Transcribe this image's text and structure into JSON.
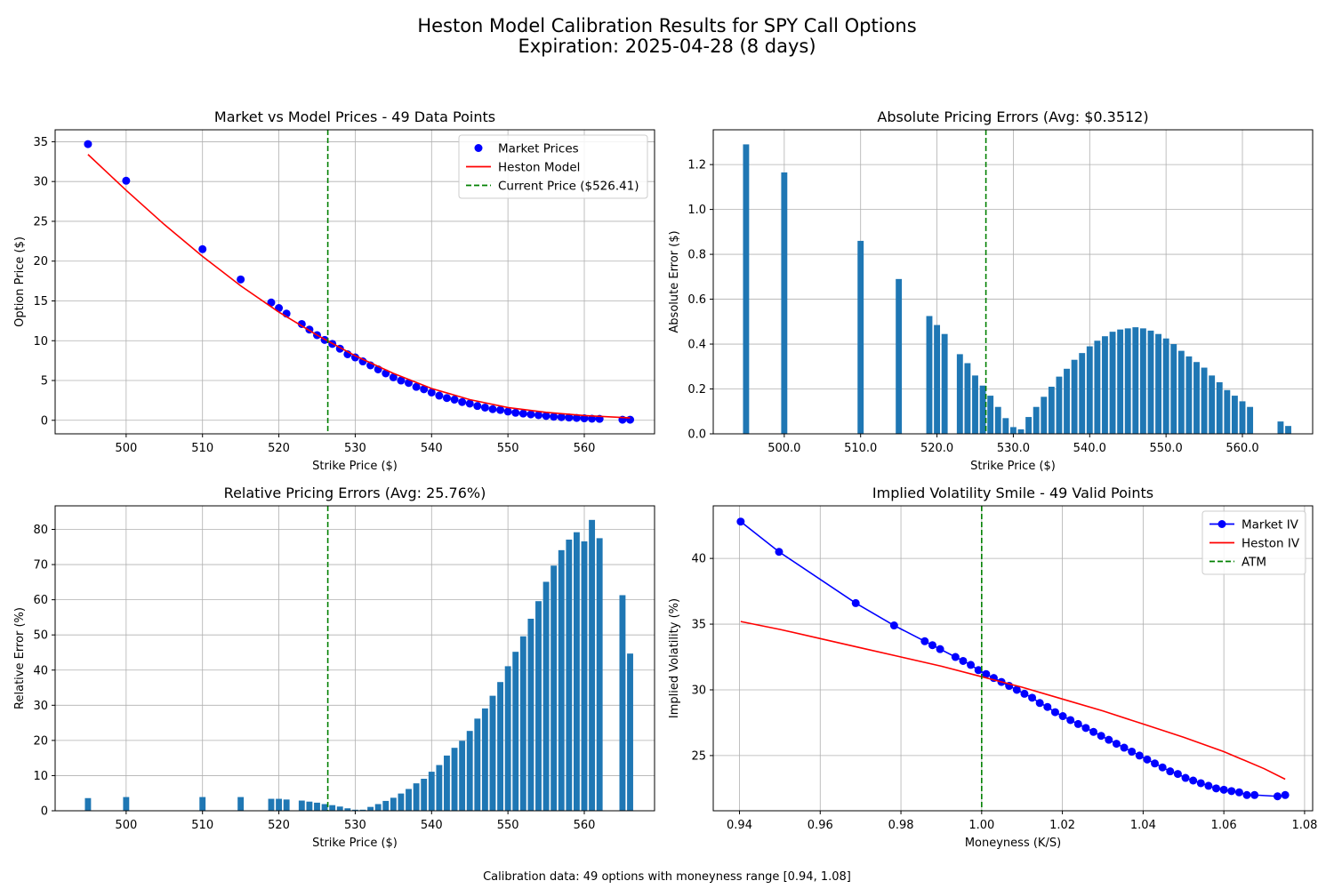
{
  "figure": {
    "title_line1": "Heston Model Calibration Results for SPY Call Options",
    "title_line2": "Expiration: 2025-04-28 (8 days)",
    "footnote": "Calibration data: 49 options with moneyness range [0.94, 1.08]"
  },
  "colors": {
    "market": "#0000ff",
    "model": "#ff0000",
    "atm": "#008000",
    "bar": "#1f77b4"
  },
  "chart_data": [
    {
      "id": "prices",
      "type": "line",
      "title": "Market vs Model Prices - 49 Data Points",
      "xlabel": "Strike Price ($)",
      "ylabel": "Option Price ($)",
      "xlim": [
        490.7,
        569.2
      ],
      "ylim": [
        -1.7,
        36.5
      ],
      "xticks": [
        500,
        510,
        520,
        530,
        540,
        550,
        560
      ],
      "yticks": [
        0,
        5,
        10,
        15,
        20,
        25,
        30,
        35
      ],
      "grid": true,
      "legend": "top-right",
      "vline": {
        "x": 526.41,
        "name": "Current Price ($526.41)"
      },
      "series": [
        {
          "name": "Market Prices",
          "kind": "markers",
          "x": [
            495,
            500,
            510,
            515,
            519,
            520,
            521,
            523,
            524,
            525,
            526,
            527,
            528,
            529,
            530,
            531,
            532,
            533,
            534,
            535,
            536,
            537,
            538,
            539,
            540,
            541,
            542,
            543,
            544,
            545,
            546,
            547,
            548,
            549,
            550,
            551,
            552,
            553,
            554,
            555,
            556,
            557,
            558,
            559,
            560,
            561,
            562,
            565,
            566
          ],
          "y": [
            34.7,
            30.1,
            21.5,
            17.7,
            14.8,
            14.1,
            13.4,
            12.1,
            11.4,
            10.7,
            10.1,
            9.6,
            9.0,
            8.3,
            7.9,
            7.4,
            6.9,
            6.4,
            5.9,
            5.4,
            5.0,
            4.7,
            4.2,
            3.9,
            3.5,
            3.1,
            2.8,
            2.6,
            2.3,
            2.1,
            1.8,
            1.6,
            1.4,
            1.3,
            1.1,
            0.95,
            0.85,
            0.75,
            0.65,
            0.55,
            0.45,
            0.4,
            0.35,
            0.3,
            0.25,
            0.2,
            0.18,
            0.08,
            0.08
          ]
        },
        {
          "name": "Heston Model",
          "kind": "line",
          "x": [
            495,
            500,
            505,
            510,
            515,
            520,
            525,
            530,
            535,
            540,
            545,
            550,
            555,
            560,
            566
          ],
          "y": [
            33.4,
            28.9,
            24.6,
            20.6,
            16.9,
            13.6,
            10.7,
            8.1,
            5.9,
            4.0,
            2.6,
            1.6,
            1.0,
            0.6,
            0.3
          ]
        }
      ]
    },
    {
      "id": "abs_err",
      "type": "bar",
      "title": "Absolute Pricing Errors (Avg: $0.3512)",
      "xlabel": "Strike Price ($)",
      "ylabel": "Absolute Error ($)",
      "xlim": [
        490.7,
        569.2
      ],
      "ylim": [
        0,
        1.355
      ],
      "xticks": [
        500,
        510,
        520,
        530,
        540,
        550,
        560
      ],
      "yticks": [
        0.0,
        0.2,
        0.4,
        0.6,
        0.8,
        1.0,
        1.2
      ],
      "tick_decimals": 1,
      "grid": true,
      "vline": {
        "x": 526.41
      },
      "bar_width": 0.8,
      "x": [
        495,
        500,
        510,
        515,
        519,
        520,
        521,
        523,
        524,
        525,
        526,
        527,
        528,
        529,
        530,
        531,
        532,
        533,
        534,
        535,
        536,
        537,
        538,
        539,
        540,
        541,
        542,
        543,
        544,
        545,
        546,
        547,
        548,
        549,
        550,
        551,
        552,
        553,
        554,
        555,
        556,
        557,
        558,
        559,
        560,
        561,
        562,
        565,
        566
      ],
      "values": [
        1.29,
        1.165,
        0.86,
        0.69,
        0.525,
        0.485,
        0.445,
        0.355,
        0.315,
        0.26,
        0.215,
        0.17,
        0.12,
        0.07,
        0.03,
        0.02,
        0.075,
        0.12,
        0.165,
        0.21,
        0.255,
        0.29,
        0.33,
        0.36,
        0.39,
        0.415,
        0.435,
        0.455,
        0.465,
        0.47,
        0.475,
        0.47,
        0.46,
        0.445,
        0.425,
        0.4,
        0.37,
        0.345,
        0.32,
        0.295,
        0.26,
        0.23,
        0.195,
        0.17,
        0.145,
        0.12,
        0.0,
        0.055,
        0.035
      ]
    },
    {
      "id": "rel_err",
      "type": "bar",
      "title": "Relative Pricing Errors (Avg: 25.76%)",
      "xlabel": "Strike Price ($)",
      "ylabel": "Relative Error (%)",
      "xlim": [
        490.7,
        569.2
      ],
      "ylim": [
        0,
        86.7
      ],
      "xticks": [
        500,
        510,
        520,
        530,
        540,
        550,
        560
      ],
      "yticks": [
        0,
        10,
        20,
        30,
        40,
        50,
        60,
        70,
        80
      ],
      "grid": true,
      "vline": {
        "x": 526.41
      },
      "bar_width": 0.8,
      "x": [
        495,
        500,
        510,
        515,
        519,
        520,
        521,
        523,
        524,
        525,
        526,
        527,
        528,
        529,
        530,
        531,
        532,
        533,
        534,
        535,
        536,
        537,
        538,
        539,
        540,
        541,
        542,
        543,
        544,
        545,
        546,
        547,
        548,
        549,
        550,
        551,
        552,
        553,
        554,
        555,
        556,
        557,
        558,
        559,
        560,
        561,
        562,
        565,
        566
      ],
      "values": [
        3.6,
        3.9,
        3.9,
        3.9,
        3.4,
        3.4,
        3.2,
        2.9,
        2.6,
        2.3,
        1.9,
        1.6,
        1.2,
        0.7,
        0.3,
        0.3,
        1.1,
        1.9,
        2.8,
        3.7,
        4.9,
        6.2,
        7.8,
        9.1,
        11.1,
        13.0,
        15.7,
        17.9,
        19.9,
        22.7,
        26.2,
        29.1,
        32.7,
        36.6,
        41.1,
        45.2,
        49.6,
        54.6,
        59.6,
        65.1,
        69.7,
        74.1,
        77.1,
        79.2,
        76.6,
        82.7,
        77.5,
        61.3,
        44.7
      ]
    },
    {
      "id": "iv_smile",
      "type": "line",
      "title": "Implied Volatility Smile - 49 Valid Points",
      "xlabel": "Moneyness (K/S)",
      "ylabel": "Implied Volatility (%)",
      "xlim": [
        0.9335,
        1.082
      ],
      "ylim": [
        20.8,
        44.0
      ],
      "xticks": [
        0.94,
        0.96,
        0.98,
        1.0,
        1.02,
        1.04,
        1.06,
        1.08
      ],
      "yticks": [
        25,
        30,
        35,
        40
      ],
      "tick_decimals": 2,
      "grid": true,
      "legend": "top-right",
      "vline": {
        "x": 1.0,
        "name": "ATM"
      },
      "series": [
        {
          "name": "Market IV",
          "kind": "line-markers",
          "x": [
            0.9403,
            0.9498,
            0.9688,
            0.9783,
            0.9859,
            0.9878,
            0.9897,
            0.9935,
            0.9954,
            0.9973,
            0.9992,
            1.0011,
            1.003,
            1.0049,
            1.0068,
            1.0087,
            1.0106,
            1.0125,
            1.0144,
            1.0163,
            1.0182,
            1.0201,
            1.022,
            1.0239,
            1.0258,
            1.0277,
            1.0296,
            1.0315,
            1.0334,
            1.0353,
            1.0372,
            1.0391,
            1.041,
            1.0429,
            1.0448,
            1.0467,
            1.0486,
            1.0505,
            1.0524,
            1.0543,
            1.0562,
            1.0581,
            1.06,
            1.0619,
            1.0638,
            1.0657,
            1.0676,
            1.0733,
            1.0752
          ],
          "y": [
            42.8,
            40.5,
            36.6,
            34.9,
            33.7,
            33.4,
            33.1,
            32.5,
            32.2,
            31.9,
            31.5,
            31.2,
            30.9,
            30.6,
            30.3,
            30.0,
            29.7,
            29.4,
            29.0,
            28.7,
            28.3,
            28.0,
            27.7,
            27.4,
            27.1,
            26.8,
            26.5,
            26.2,
            25.9,
            25.6,
            25.3,
            25.0,
            24.7,
            24.4,
            24.1,
            23.8,
            23.6,
            23.3,
            23.1,
            22.9,
            22.7,
            22.5,
            22.4,
            22.3,
            22.2,
            22.0,
            22.0,
            21.9,
            22.0
          ]
        },
        {
          "name": "Heston IV",
          "kind": "line",
          "x": [
            0.9403,
            0.95,
            0.96,
            0.97,
            0.98,
            0.99,
            1.0,
            1.01,
            1.02,
            1.03,
            1.04,
            1.05,
            1.06,
            1.07,
            1.0752
          ],
          "y": [
            35.2,
            34.6,
            33.9,
            33.2,
            32.5,
            31.8,
            31.0,
            30.2,
            29.3,
            28.4,
            27.4,
            26.4,
            25.3,
            24.0,
            23.2
          ]
        }
      ]
    }
  ]
}
